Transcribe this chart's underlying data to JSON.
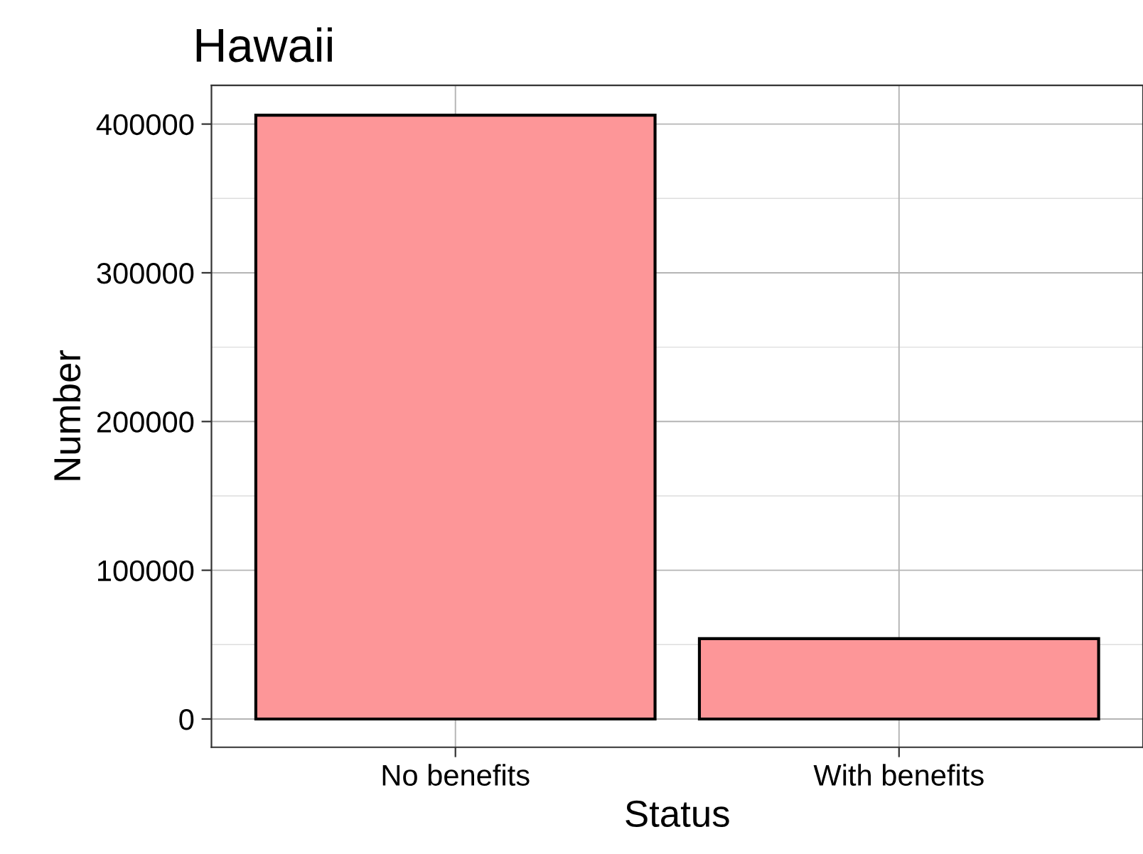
{
  "chart_data": {
    "type": "bar",
    "title": "Hawaii",
    "xlabel": "Status",
    "ylabel": "Number",
    "categories": [
      "No benefits",
      "With benefits"
    ],
    "values": [
      406000,
      54000
    ],
    "color": "#fd9698",
    "ylim": [
      -19000,
      426000
    ],
    "yticks": [
      0,
      100000,
      200000,
      300000,
      400000
    ],
    "grid": true,
    "legend": false
  }
}
